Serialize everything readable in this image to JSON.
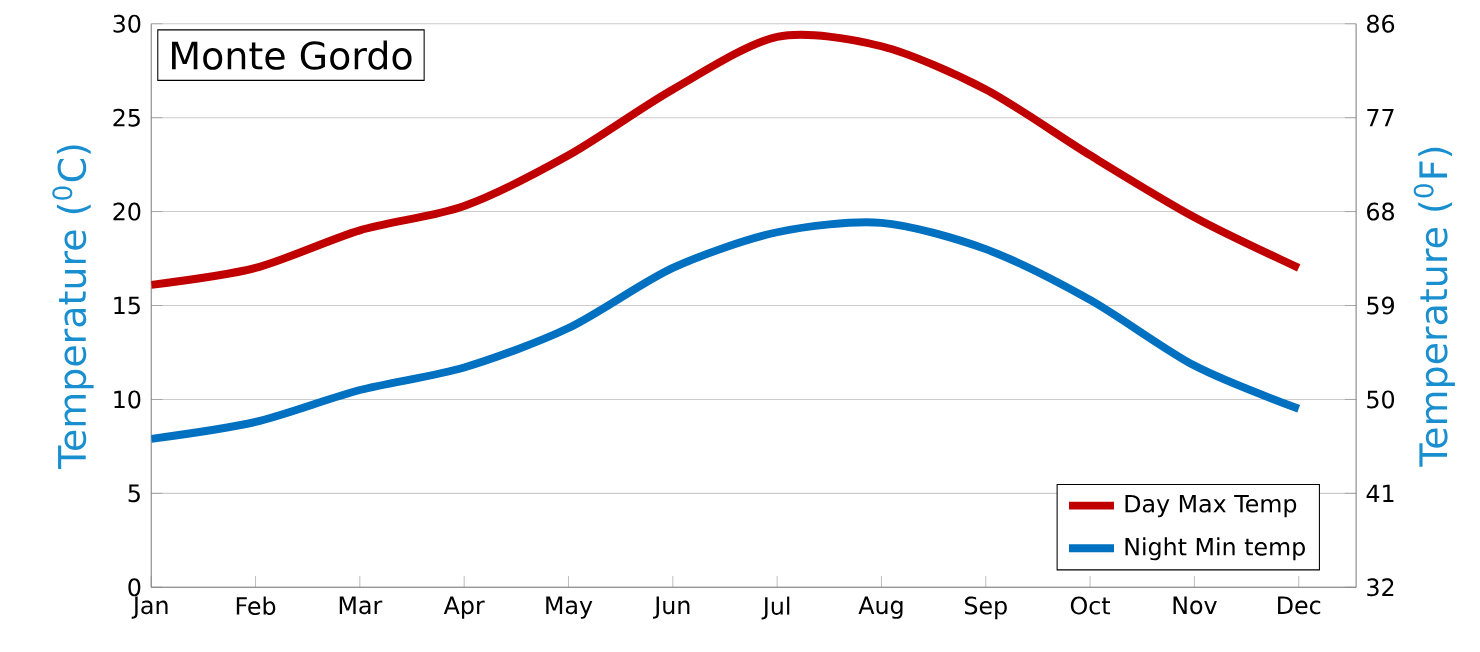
{
  "chart_data": {
    "type": "line",
    "title": "Monte Gordo",
    "ylabel": "Temperature ($^{0}$C)",
    "y2label": "Temperature ($^{0}$F)",
    "categories": [
      "Jan",
      "Feb",
      "Mar",
      "Apr",
      "May",
      "Jun",
      "Jul",
      "Aug",
      "Sep",
      "Oct",
      "Nov",
      "Dec"
    ],
    "series": [
      {
        "name": "Day Max Temp",
        "color": "#c00000",
        "values": [
          16.1,
          17,
          19,
          20.3,
          23,
          26.5,
          29.3,
          28.8,
          26.5,
          23,
          19.7,
          17
        ]
      },
      {
        "name": "Night Min temp",
        "color": "#0070c0",
        "values": [
          7.9,
          8.8,
          10.5,
          11.7,
          13.8,
          17,
          18.9,
          19.4,
          18,
          15.3,
          11.8,
          9.5
        ]
      }
    ],
    "ylim": [
      0,
      30
    ],
    "yticks": [
      0,
      5,
      10,
      15,
      20,
      25,
      30
    ],
    "y2lim": [
      32,
      86
    ],
    "y2ticks": [
      32,
      41,
      50,
      59,
      68,
      77,
      86
    ],
    "grid": "y",
    "legend": "bottom right"
  }
}
